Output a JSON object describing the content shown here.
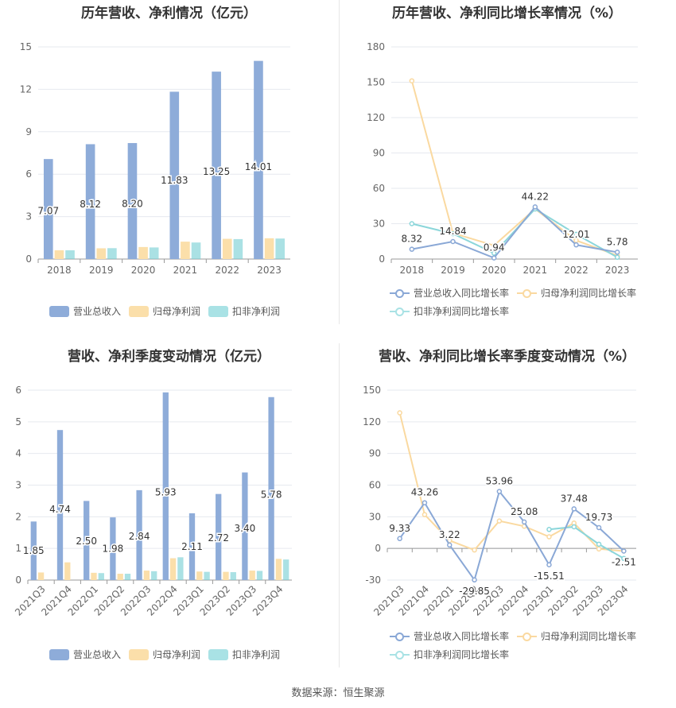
{
  "colors": {
    "revenue": "#8eacd9",
    "parent_profit": "#fbdfaa",
    "nonrecurring_profit": "#7dd1d6",
    "revenue_line": "#8aa8d6",
    "parent_line": "#fad9a0",
    "nonrec_line": "#8bd6da"
  },
  "source_text": "数据来源：恒生聚源",
  "chart_data": [
    {
      "type": "bar",
      "title": "历年营收、净利情况（亿元）",
      "categories": [
        "2018",
        "2019",
        "2020",
        "2021",
        "2022",
        "2023"
      ],
      "ylim": [
        0,
        15
      ],
      "yticks": [
        0,
        3,
        6,
        9,
        12,
        15
      ],
      "grid": true,
      "legend_position": "bottom",
      "series": [
        {
          "name": "营业总收入",
          "values": [
            7.07,
            8.12,
            8.2,
            11.83,
            13.25,
            14.01
          ],
          "labels": [
            "7.07",
            "8.12",
            "8.20",
            "11.83",
            "13.25",
            "14.01"
          ]
        },
        {
          "name": "归母净利润",
          "values": [
            0.62,
            0.76,
            0.85,
            1.23,
            1.43,
            1.47
          ]
        },
        {
          "name": "扣非净利润",
          "values": [
            0.62,
            0.77,
            0.82,
            1.17,
            1.41,
            1.45
          ]
        }
      ]
    },
    {
      "type": "line",
      "title": "历年营收、净利同比增长率情况（%）",
      "categories": [
        "2018",
        "2019",
        "2020",
        "2021",
        "2022",
        "2023"
      ],
      "ylim": [
        0,
        180
      ],
      "yticks": [
        0,
        30,
        60,
        90,
        120,
        150,
        180
      ],
      "grid": true,
      "legend_position": "bottom",
      "series": [
        {
          "name": "营业总收入同比增长率",
          "values": [
            8.32,
            14.84,
            0.94,
            44.22,
            12.01,
            5.78
          ],
          "labels": [
            "8.32",
            "14.84",
            "0.94",
            "44.22",
            "12.01",
            "5.78"
          ]
        },
        {
          "name": "归母净利润同比增长率",
          "values": [
            151.2,
            22.0,
            11.5,
            42.5,
            15.8,
            3.0
          ]
        },
        {
          "name": "扣非净利润同比增长率",
          "values": [
            30.0,
            21.5,
            5.0,
            42.5,
            21.0,
            1.5
          ]
        }
      ]
    },
    {
      "type": "bar",
      "title": "营收、净利季度变动情况（亿元）",
      "categories": [
        "2021Q3",
        "2021Q4",
        "2022Q1",
        "2022Q2",
        "2022Q3",
        "2022Q4",
        "2023Q1",
        "2023Q2",
        "2023Q3",
        "2023Q4"
      ],
      "ylim": [
        0,
        6
      ],
      "yticks": [
        0,
        1,
        2,
        3,
        4,
        5,
        6
      ],
      "grid": true,
      "legend_position": "bottom",
      "series": [
        {
          "name": "营业总收入",
          "values": [
            1.85,
            4.74,
            2.5,
            1.98,
            2.84,
            5.93,
            2.11,
            2.72,
            3.4,
            5.78
          ],
          "labels": [
            "1.85",
            "4.74",
            "2.50",
            "1.98",
            "2.84",
            "5.93",
            "2.11",
            "2.72",
            "3.40",
            "5.78"
          ]
        },
        {
          "name": "归母净利润",
          "values": [
            0.24,
            0.56,
            0.23,
            0.2,
            0.3,
            0.69,
            0.27,
            0.26,
            0.3,
            0.67
          ]
        },
        {
          "name": "扣非净利润",
          "values": [
            null,
            null,
            0.22,
            0.2,
            0.28,
            0.72,
            0.26,
            0.25,
            0.29,
            0.65
          ]
        }
      ]
    },
    {
      "type": "line",
      "title": "营收、净利同比增长率季度变动情况（%）",
      "categories": [
        "2021Q3",
        "2021Q4",
        "2022Q1",
        "2022Q2",
        "2022Q3",
        "2022Q4",
        "2023Q1",
        "2023Q2",
        "2023Q3",
        "2023Q4"
      ],
      "ylim": [
        -30,
        150
      ],
      "yticks": [
        -30,
        0,
        30,
        60,
        90,
        120,
        150
      ],
      "grid": true,
      "legend_position": "bottom",
      "series": [
        {
          "name": "营业总收入同比增长率",
          "values": [
            9.33,
            43.26,
            3.22,
            -29.85,
            53.96,
            25.08,
            -15.51,
            37.48,
            19.73,
            -2.51
          ],
          "labels": [
            "9.33",
            "43.26",
            "3.22",
            "-29.85",
            "53.96",
            "25.08",
            "-15.51",
            "37.48",
            "19.73",
            "-2.51"
          ]
        },
        {
          "name": "归母净利润同比增长率",
          "values": [
            128.5,
            32.0,
            7.5,
            -1.5,
            26.0,
            21.0,
            11.0,
            24.0,
            -0.5,
            -2.5
          ]
        },
        {
          "name": "扣非净利润同比增长率",
          "values": [
            null,
            null,
            null,
            null,
            null,
            null,
            18.0,
            20.5,
            4.0,
            -9.5
          ]
        }
      ]
    }
  ]
}
